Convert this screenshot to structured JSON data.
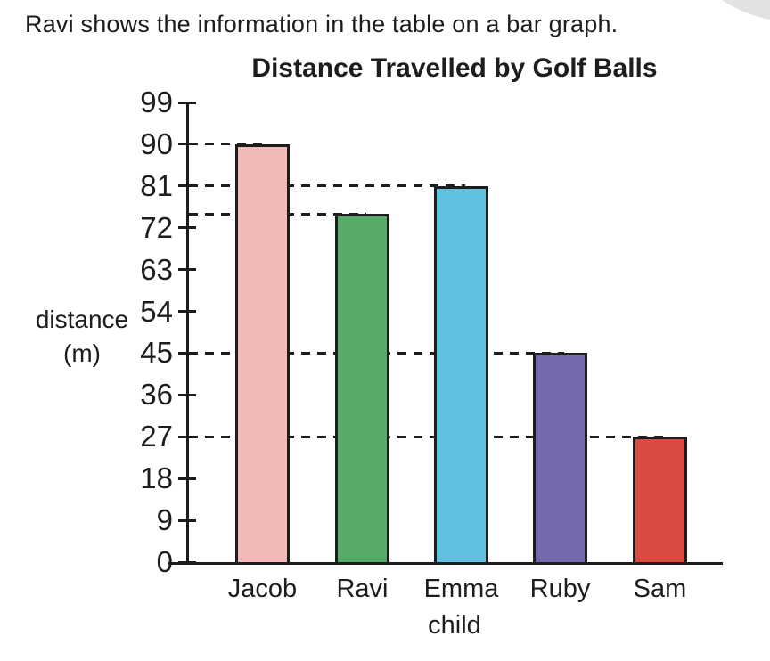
{
  "page": {
    "prompt": "Ravi shows the information in the table on a bar graph.",
    "background": "#ffffff",
    "text_color": "#1d1d1d",
    "corner_decoration_color": "#e2e2e2"
  },
  "chart_data": {
    "type": "bar",
    "title": "Distance Travelled by Golf Balls",
    "xlabel": "child",
    "ylabel": "distance (m)",
    "ylabel_lines": [
      "distance",
      "(m)"
    ],
    "categories": [
      "Jacob",
      "Ravi",
      "Emma",
      "Ruby",
      "Sam"
    ],
    "values": [
      90,
      75,
      81,
      45,
      27
    ],
    "bar_colors": [
      "#f1bab8",
      "#56ab67",
      "#5fc3df",
      "#7769ad",
      "#db4a43"
    ],
    "yticks": [
      99,
      90,
      81,
      72,
      63,
      54,
      45,
      36,
      27,
      18,
      9,
      0
    ],
    "ylim": [
      0,
      99
    ],
    "guide_lines_at_bar_values": [
      90,
      75,
      81,
      45,
      27
    ],
    "grid": false,
    "legend": "none",
    "axis_color": "#1d1d1d",
    "dash_style": "dashed guides run from y-axis to each bar, hidden behind bars"
  }
}
